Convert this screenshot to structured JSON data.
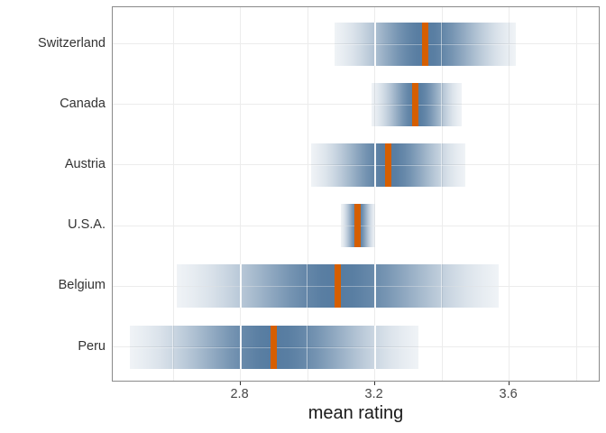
{
  "chart_data": {
    "type": "gradient-interval",
    "orientation": "horizontal",
    "title": "",
    "xlabel": "mean rating",
    "ylabel": "",
    "x_domain": [
      2.42,
      3.872
    ],
    "x_major_ticks": [
      2.8,
      3.2,
      3.6
    ],
    "x_major_tick_labels": [
      "2.8",
      "3.2",
      "3.6"
    ],
    "x_gridlines": [
      2.6,
      2.8,
      3.0,
      3.2,
      3.4,
      3.6,
      3.8
    ],
    "grid": "on",
    "legend": "none",
    "categories": [
      "Switzerland",
      "Canada",
      "Austria",
      "U.S.A.",
      "Belgium",
      "Peru"
    ],
    "series": [
      {
        "name": "Switzerland",
        "mean": 3.35,
        "strip_min": 3.08,
        "strip_max": 3.62
      },
      {
        "name": "Canada",
        "mean": 3.32,
        "strip_min": 3.19,
        "strip_max": 3.46
      },
      {
        "name": "Austria",
        "mean": 3.24,
        "strip_min": 3.01,
        "strip_max": 3.47
      },
      {
        "name": "U.S.A.",
        "mean": 3.15,
        "strip_min": 3.1,
        "strip_max": 3.2
      },
      {
        "name": "Belgium",
        "mean": 3.09,
        "strip_min": 2.61,
        "strip_max": 3.57
      },
      {
        "name": "Peru",
        "mean": 2.9,
        "strip_min": 2.47,
        "strip_max": 3.33
      }
    ],
    "colors": {
      "strip_fill": "#1A4D7F",
      "mean_marker": "#D55E00",
      "gridline": "#ECECEC",
      "panel_border": "#8A8A8A",
      "axis_text": "#474747",
      "label_text": "#333333",
      "title_text": "#1A1A1A"
    }
  }
}
